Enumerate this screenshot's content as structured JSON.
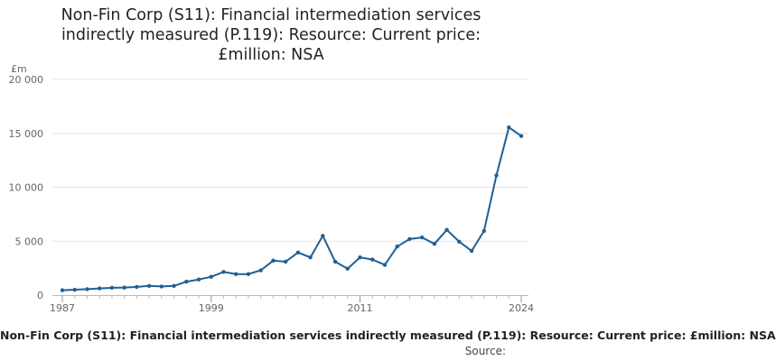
{
  "chart_data": {
    "type": "line",
    "title": [
      "Non-Fin Corp (S11): Financial intermediation services",
      "indirectly measured (P.119): Resource: Current price:",
      "£million: NSA"
    ],
    "ylabel": "£m",
    "xlabel": "",
    "x_ticks": [
      "1987",
      "1999",
      "2011",
      "2024"
    ],
    "y_ticks": [
      "0",
      "5 000",
      "10 000",
      "15 000",
      "20 000"
    ],
    "xlim": [
      1987,
      2024
    ],
    "ylim": [
      0,
      20000
    ],
    "grid": true,
    "legend": "none",
    "line_color": "#206095",
    "series": [
      {
        "x": [
          1987,
          1988,
          1989,
          1990,
          1991,
          1992,
          1993,
          1994,
          1995,
          1996,
          1997,
          1998,
          1999,
          2000,
          2001,
          2002,
          2003,
          2004,
          2005,
          2006,
          2007,
          2008,
          2009,
          2010,
          2011,
          2012,
          2013,
          2014,
          2015,
          2016,
          2017,
          2018,
          2019,
          2020,
          2021,
          2022,
          2023,
          2024
        ],
        "values": [
          450,
          500,
          550,
          620,
          680,
          700,
          760,
          850,
          800,
          850,
          1250,
          1450,
          1700,
          2150,
          1950,
          1950,
          2300,
          3200,
          3100,
          3950,
          3500,
          5500,
          3100,
          2450,
          3500,
          3300,
          2800,
          4500,
          5200,
          5350,
          4750,
          6050,
          4950,
          4100,
          5950,
          11100,
          15550,
          14750
        ]
      }
    ]
  },
  "footer": {
    "title": "Non-Fin Corp (S11): Financial intermediation services indirectly measured (P.119): Resource: Current price: £million: NSA",
    "source": "Source:"
  }
}
